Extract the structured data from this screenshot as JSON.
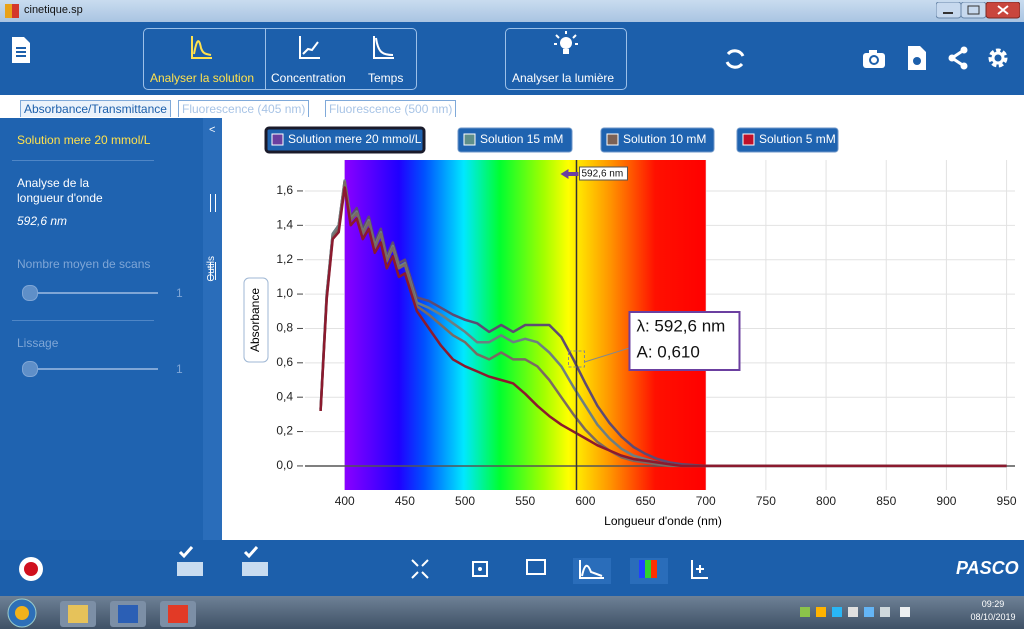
{
  "window": {
    "title": "cinetique.sp"
  },
  "toolbar": {
    "buttons": [
      "Analyser la solution",
      "Concentration",
      "Temps",
      "Analyser la lumière"
    ]
  },
  "tabs": [
    "Absorbance/Transmittance",
    "Fluorescence (405 nm)",
    "Fluorescence (500 nm)"
  ],
  "side_panel": {
    "selected": "Solution mere 20 mmol/L",
    "tools_label": "Outils",
    "analysis_title": "Analyse de la longueur d'onde",
    "analysis_value": "592,6 nm",
    "scans_label": "Nombre moyen de scans",
    "scans_value": 1,
    "smoothing_label": "Lissage",
    "smoothing_value": 1
  },
  "chart_data": {
    "type": "line",
    "xlabel": "Longueur d'onde (nm)",
    "ylabel": "Absorbance",
    "x": [
      380,
      385,
      390,
      395,
      400,
      405,
      410,
      415,
      420,
      425,
      430,
      435,
      440,
      445,
      450,
      460,
      470,
      480,
      490,
      500,
      510,
      520,
      530,
      540,
      550,
      560,
      570,
      580,
      590,
      600,
      610,
      620,
      630,
      640,
      650,
      660,
      670,
      680,
      700,
      750,
      800,
      850,
      900,
      950
    ],
    "series": [
      {
        "name": "Solution mere 20 mmol/L",
        "color": "#5e4a72",
        "legend_color": "#6b3fa0",
        "values": [
          0.33,
          1.0,
          1.35,
          1.4,
          1.66,
          1.45,
          1.5,
          1.38,
          1.45,
          1.3,
          1.38,
          1.22,
          1.3,
          1.18,
          1.2,
          0.98,
          0.96,
          0.92,
          0.88,
          0.85,
          0.83,
          0.78,
          0.82,
          0.78,
          0.82,
          0.82,
          0.82,
          0.75,
          0.62,
          0.48,
          0.35,
          0.25,
          0.17,
          0.11,
          0.07,
          0.04,
          0.02,
          0.01,
          0,
          0,
          0,
          0,
          0,
          0
        ]
      },
      {
        "name": "Solution 15  mM",
        "color": "#6d7f82",
        "legend_color": "#5f8f8a",
        "values": [
          0.33,
          1.0,
          1.35,
          1.4,
          1.66,
          1.44,
          1.48,
          1.36,
          1.43,
          1.28,
          1.36,
          1.2,
          1.28,
          1.16,
          1.18,
          0.95,
          0.92,
          0.88,
          0.83,
          0.78,
          0.72,
          0.72,
          0.76,
          0.72,
          0.74,
          0.72,
          0.66,
          0.58,
          0.46,
          0.35,
          0.24,
          0.16,
          0.1,
          0.06,
          0.04,
          0.02,
          0.01,
          0,
          0,
          0,
          0,
          0,
          0,
          0
        ]
      },
      {
        "name": "Solution 10 mM",
        "color": "#7a6a62",
        "legend_color": "#7b6155",
        "values": [
          0.32,
          0.98,
          1.33,
          1.38,
          1.65,
          1.43,
          1.47,
          1.35,
          1.42,
          1.27,
          1.35,
          1.19,
          1.27,
          1.15,
          1.17,
          0.93,
          0.88,
          0.82,
          0.76,
          0.72,
          0.65,
          0.62,
          0.66,
          0.62,
          0.62,
          0.58,
          0.5,
          0.4,
          0.3,
          0.21,
          0.14,
          0.09,
          0.05,
          0.03,
          0.02,
          0.01,
          0,
          0,
          0,
          0,
          0,
          0,
          0,
          0
        ]
      },
      {
        "name": "Solution 5 mM",
        "color": "#8b1a2e",
        "legend_color": "#c0102a",
        "values": [
          0.32,
          0.97,
          1.32,
          1.36,
          1.62,
          1.4,
          1.44,
          1.32,
          1.38,
          1.24,
          1.3,
          1.15,
          1.22,
          1.1,
          1.12,
          0.9,
          0.8,
          0.7,
          0.62,
          0.58,
          0.55,
          0.52,
          0.5,
          0.48,
          0.42,
          0.35,
          0.29,
          0.24,
          0.2,
          0.16,
          0.12,
          0.09,
          0.06,
          0.04,
          0.03,
          0.02,
          0.01,
          0,
          0,
          0,
          0,
          0,
          0,
          0
        ]
      }
    ],
    "xlim": [
      367,
      957
    ],
    "ylim": [
      -0.14,
      1.78
    ],
    "xticks": [
      400,
      450,
      500,
      550,
      600,
      650,
      700,
      750,
      800,
      850,
      900,
      950
    ],
    "yticks": [
      {
        "value": 0,
        "label": "0,0"
      },
      {
        "value": 0.2,
        "label": "0,2"
      },
      {
        "value": 0.4,
        "label": "0,4"
      },
      {
        "value": 0.6,
        "label": "0,6"
      },
      {
        "value": 0.8,
        "label": "0,8"
      },
      {
        "value": 1.0,
        "label": "1,0"
      },
      {
        "value": 1.2,
        "label": "1,2"
      },
      {
        "value": 1.4,
        "label": "1,4"
      },
      {
        "value": 1.6,
        "label": "1,6"
      }
    ],
    "grid": true,
    "spectrum": [
      400,
      700
    ],
    "cursor": {
      "x": 592.6,
      "label": "592,6 nm"
    },
    "tooltip": [
      "λ: 592,6 nm",
      "A: 0,610"
    ]
  },
  "bottom_bar": {
    "brand": "PASCO"
  },
  "taskbar": {
    "time": "09:29",
    "date": "08/10/2019"
  }
}
